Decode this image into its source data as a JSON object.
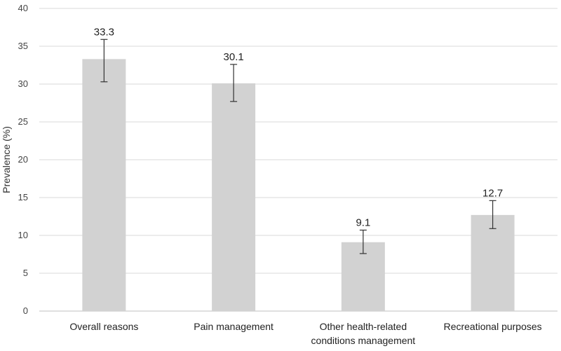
{
  "chart_data": {
    "type": "bar",
    "title": "",
    "xlabel": "",
    "ylabel": "Prevalence (%)",
    "ylim": [
      0,
      40
    ],
    "yticks": [
      0,
      5,
      10,
      15,
      20,
      25,
      30,
      35,
      40
    ],
    "grid": true,
    "categories": [
      [
        "Overall reasons"
      ],
      [
        "Pain management"
      ],
      [
        "Other health-related",
        "conditions management"
      ],
      [
        "Recreational purposes"
      ]
    ],
    "values": [
      33.3,
      30.1,
      9.1,
      12.7
    ],
    "data_labels": [
      "33.3",
      "30.1",
      "9.1",
      "12.7"
    ],
    "error_bars": [
      {
        "low": 30.3,
        "high": 35.9
      },
      {
        "low": 27.7,
        "high": 32.6
      },
      {
        "low": 7.6,
        "high": 10.7
      },
      {
        "low": 10.9,
        "high": 14.6
      }
    ],
    "colors": {
      "bar": "#d2d2d2",
      "grid": "#d9d9d9",
      "axis": "#bfbfbf",
      "error": "#333333"
    }
  }
}
